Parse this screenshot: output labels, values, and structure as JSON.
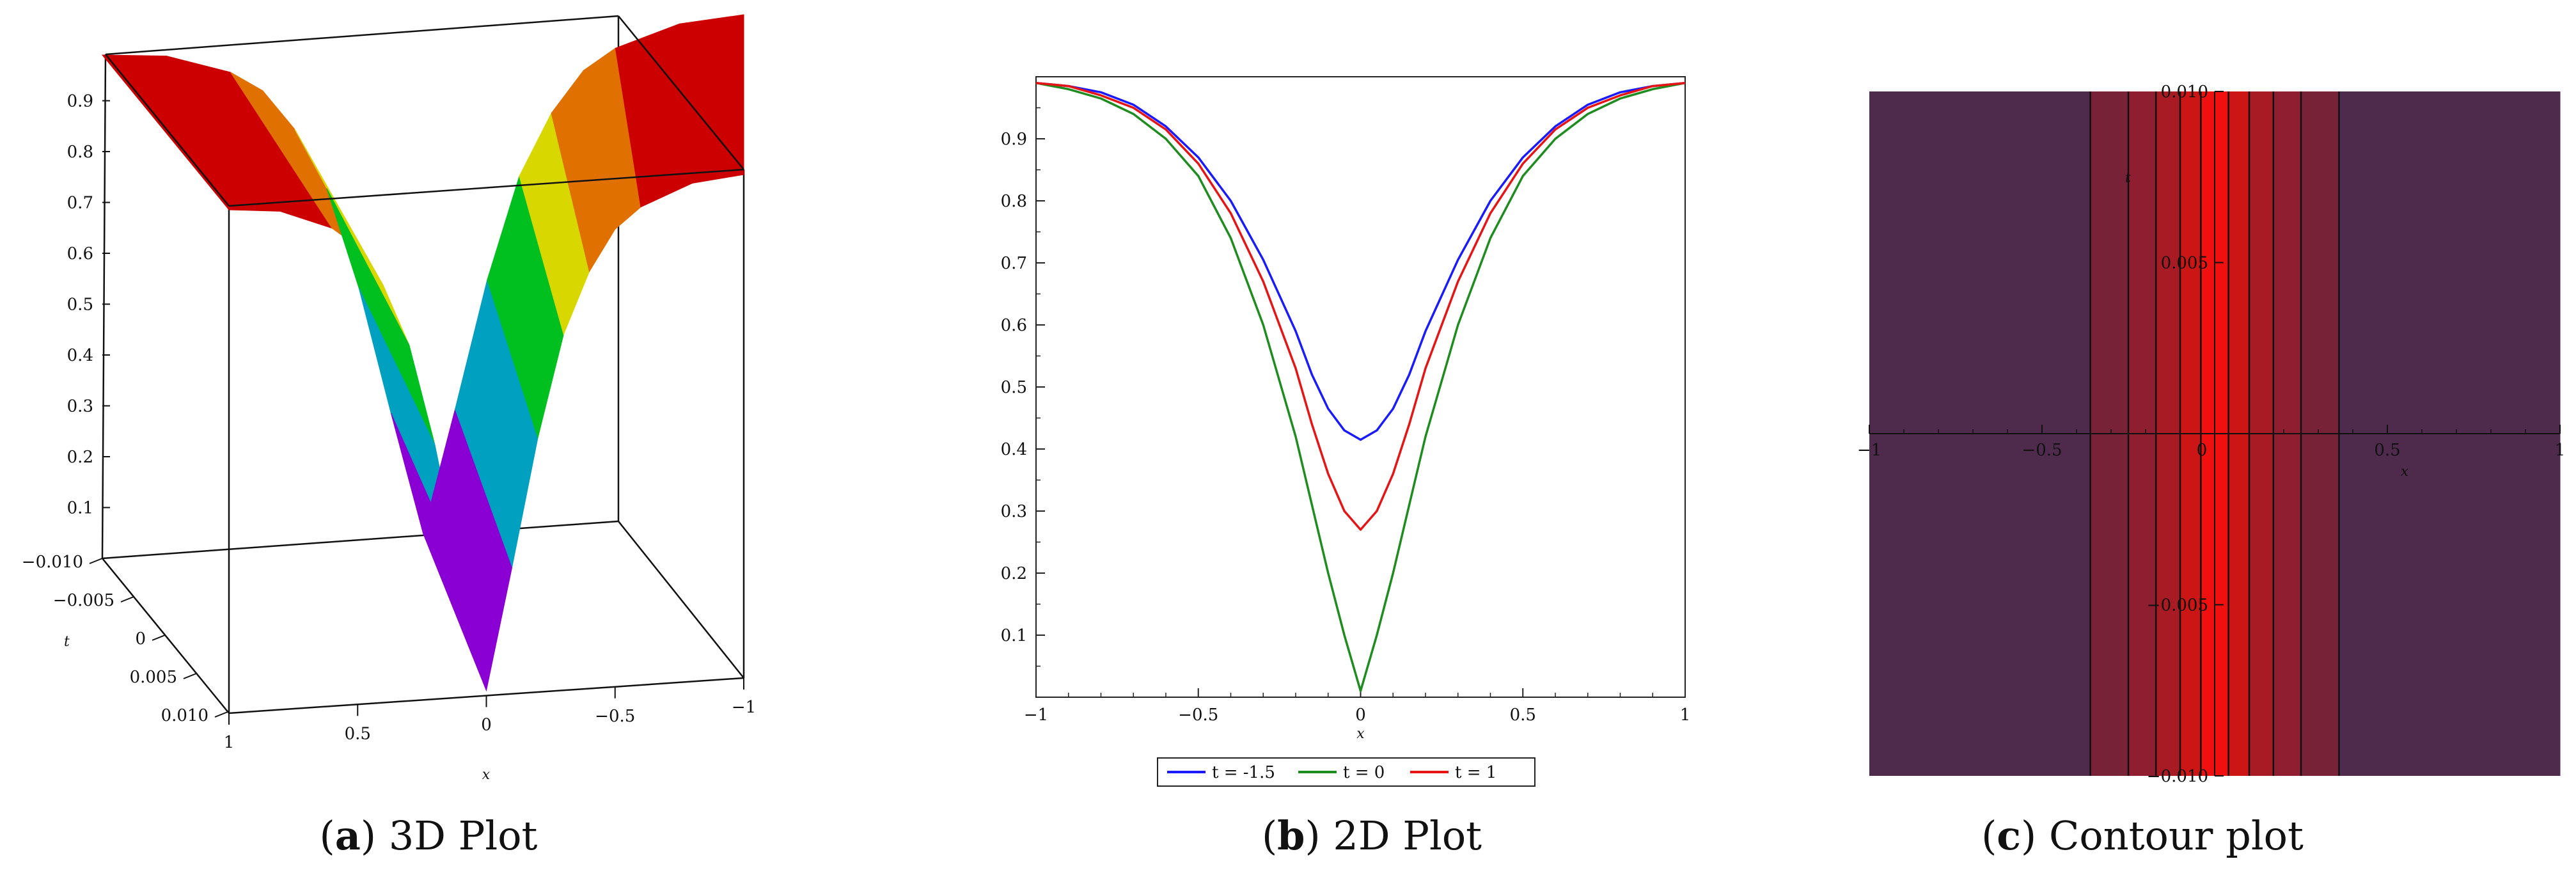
{
  "captions": [
    {
      "letter": "a",
      "text": "3D Plot"
    },
    {
      "letter": "b",
      "text": "2D Plot"
    },
    {
      "letter": "c",
      "text": "Contour plot"
    }
  ],
  "chart_data": [
    {
      "type": "surface3d",
      "xlabel": "x",
      "ylabel": "t",
      "x_ticks": [
        "1",
        "0.5",
        "0",
        "−0.5",
        "−1"
      ],
      "t_ticks": [
        "−0.010",
        "−0.005",
        "0",
        "0.005",
        "0.010"
      ],
      "z_ticks": [
        "0.1",
        "0.2",
        "0.3",
        "0.4",
        "0.5",
        "0.6",
        "0.7",
        "0.8",
        "0.9"
      ],
      "xlim": [
        -1,
        1
      ],
      "tlim": [
        -0.01,
        0.01
      ],
      "zlim": [
        0.0,
        1.0
      ],
      "profile_x": [
        -1,
        -0.8,
        -0.6,
        -0.5,
        -0.4,
        -0.3,
        -0.2,
        -0.1,
        0,
        0.1,
        0.2,
        0.3,
        0.4,
        0.5,
        0.6,
        0.8,
        1
      ],
      "profile_u": [
        0.99,
        0.98,
        0.94,
        0.9,
        0.82,
        0.7,
        0.5,
        0.25,
        0.01,
        0.25,
        0.5,
        0.7,
        0.82,
        0.9,
        0.94,
        0.98,
        0.99
      ],
      "colormap": [
        "#8a00d4",
        "#2020e0",
        "#00a0c0",
        "#00c020",
        "#d8d800",
        "#e07000",
        "#cc0000"
      ]
    },
    {
      "type": "line",
      "xlabel": "x",
      "xlim": [
        -1,
        1
      ],
      "ylim": [
        0,
        1
      ],
      "x_ticks": [
        "−1",
        "−0.5",
        "0",
        "0.5",
        "1"
      ],
      "y_ticks": [
        "0.1",
        "0.2",
        "0.3",
        "0.4",
        "0.5",
        "0.6",
        "0.7",
        "0.8",
        "0.9"
      ],
      "x": [
        -1,
        -0.9,
        -0.8,
        -0.7,
        -0.6,
        -0.5,
        -0.4,
        -0.3,
        -0.2,
        -0.15,
        -0.1,
        -0.05,
        0,
        0.05,
        0.1,
        0.15,
        0.2,
        0.3,
        0.4,
        0.5,
        0.6,
        0.7,
        0.8,
        0.9,
        1
      ],
      "series": [
        {
          "name": "t = -1.5",
          "color": "#1a1aff",
          "values": [
            0.99,
            0.985,
            0.975,
            0.955,
            0.92,
            0.87,
            0.8,
            0.705,
            0.59,
            0.52,
            0.465,
            0.43,
            0.415,
            0.43,
            0.465,
            0.52,
            0.59,
            0.705,
            0.8,
            0.87,
            0.92,
            0.955,
            0.975,
            0.985,
            0.99
          ]
        },
        {
          "name": "t = 0",
          "color": "#1e8c1e",
          "values": [
            0.99,
            0.98,
            0.965,
            0.94,
            0.9,
            0.84,
            0.74,
            0.6,
            0.42,
            0.31,
            0.2,
            0.1,
            0.01,
            0.1,
            0.2,
            0.31,
            0.42,
            0.6,
            0.74,
            0.84,
            0.9,
            0.94,
            0.965,
            0.98,
            0.99
          ]
        },
        {
          "name": "t = 1",
          "color": "#e61414",
          "values": [
            0.99,
            0.985,
            0.97,
            0.95,
            0.915,
            0.86,
            0.78,
            0.67,
            0.53,
            0.44,
            0.36,
            0.3,
            0.27,
            0.3,
            0.36,
            0.44,
            0.53,
            0.67,
            0.78,
            0.86,
            0.915,
            0.95,
            0.97,
            0.985,
            0.99
          ]
        }
      ]
    },
    {
      "type": "contour",
      "xlabel": "x",
      "ylabel": "t",
      "xlim": [
        -1,
        1
      ],
      "ylim": [
        -0.01,
        0.01
      ],
      "x_ticks": [
        "−1",
        "−0.5",
        "0",
        "0.5",
        "1"
      ],
      "y_ticks_top": "0.010",
      "y_ticks_mid": "0.005",
      "y_ticks_neg_mid": "−0.005",
      "y_ticks_bottom": "−0.010",
      "bands": [
        {
          "x0": -1,
          "x1": -0.36,
          "color": "#4e2a4c"
        },
        {
          "x0": -0.36,
          "x1": -0.25,
          "color": "#782238"
        },
        {
          "x0": -0.25,
          "x1": -0.17,
          "color": "#8e1e30"
        },
        {
          "x0": -0.17,
          "x1": -0.1,
          "color": "#a81a24"
        },
        {
          "x0": -0.1,
          "x1": -0.04,
          "color": "#cc1515"
        },
        {
          "x0": -0.04,
          "x1": 0.04,
          "color": "#f01010"
        },
        {
          "x0": 0.04,
          "x1": 0.1,
          "color": "#cc1515"
        },
        {
          "x0": 0.1,
          "x1": 0.17,
          "color": "#a81a24"
        },
        {
          "x0": 0.17,
          "x1": 0.25,
          "color": "#8e1e30"
        },
        {
          "x0": 0.25,
          "x1": 0.36,
          "color": "#782238"
        },
        {
          "x0": 0.36,
          "x1": 1,
          "color": "#4e2a4c"
        }
      ],
      "contour_lines_x": [
        -0.36,
        -0.25,
        -0.17,
        -0.1,
        -0.04,
        0.04,
        0.1,
        0.17,
        0.25,
        0.36
      ]
    }
  ]
}
